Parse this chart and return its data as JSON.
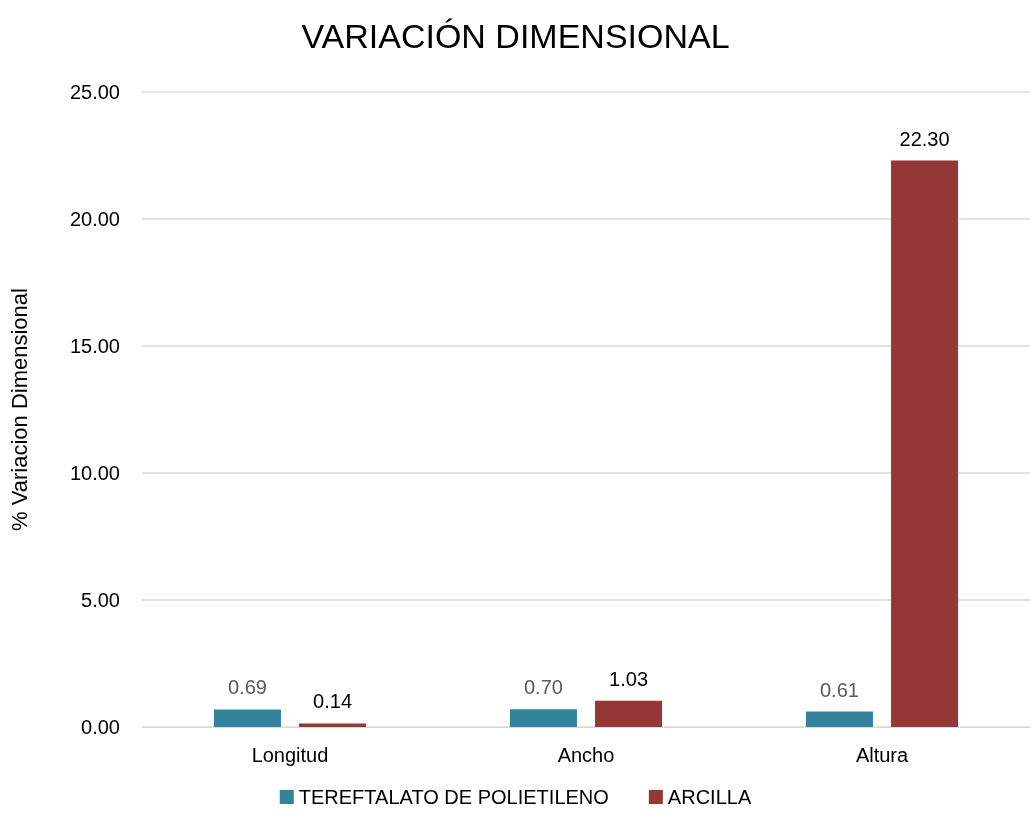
{
  "chart_data": {
    "type": "bar",
    "title": "VARIACIÓN DIMENSIONAL",
    "ylabel": "% Variacion Dimensional",
    "categories": [
      "Longitud",
      "Ancho",
      "Altura"
    ],
    "series": [
      {
        "name": "TEREFTALATO DE POLIETILENO",
        "color": "#31849b",
        "values": [
          0.69,
          0.7,
          0.61
        ],
        "value_labels": [
          "0.69",
          "0.70",
          "0.61"
        ]
      },
      {
        "name": "ARCILLA",
        "color": "#953735",
        "values": [
          0.14,
          1.03,
          22.3
        ],
        "value_labels": [
          "0.14",
          "1.03",
          "22.30"
        ]
      }
    ],
    "ylim": [
      0,
      25
    ],
    "yticks": [
      {
        "value": 0,
        "label": "0.00"
      },
      {
        "value": 5,
        "label": "5.00"
      },
      {
        "value": 10,
        "label": "10.00"
      },
      {
        "value": 15,
        "label": "15.00"
      },
      {
        "value": 20,
        "label": "20.00"
      },
      {
        "value": 25,
        "label": "25.00"
      }
    ],
    "grid": "y",
    "legend": "bottom"
  }
}
